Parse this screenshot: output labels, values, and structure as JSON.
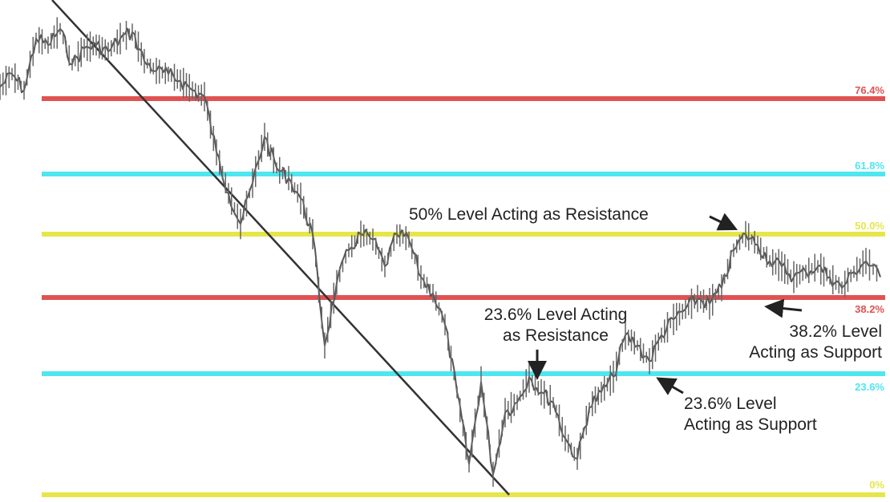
{
  "chart_data": {
    "type": "line",
    "title": "",
    "xlabel": "",
    "ylabel": "",
    "ylim": [
      0,
      100
    ],
    "grid": false,
    "levels": [
      {
        "label": "76.4%",
        "value": 76.4,
        "color": "#e05252"
      },
      {
        "label": "61.8%",
        "value": 61.8,
        "color": "#4ee6f0"
      },
      {
        "label": "50.0%",
        "value": 50.0,
        "color": "#e6e64a"
      },
      {
        "label": "38.2%",
        "value": 38.2,
        "color": "#e05252"
      },
      {
        "label": "23.6%",
        "value": 23.6,
        "color": "#4ee6f0"
      },
      {
        "label": "0%",
        "value": 0,
        "color": "#e6e64a"
      }
    ],
    "price_series": {
      "name": "",
      "color": "#555555",
      "x": [
        0,
        15,
        30,
        45,
        60,
        75,
        90,
        105,
        120,
        135,
        150,
        165,
        180,
        195,
        210,
        225,
        240,
        255,
        270,
        285,
        300,
        315,
        330,
        345,
        360,
        375,
        390,
        405,
        420,
        435,
        450,
        465,
        480,
        495,
        510,
        525,
        540,
        555,
        570,
        585,
        600,
        615,
        630,
        645,
        660,
        675,
        690,
        705,
        720,
        735,
        750,
        765,
        780,
        795,
        810,
        825,
        840,
        855,
        870,
        885,
        900,
        915,
        930,
        945,
        960,
        975,
        990,
        1005,
        1020,
        1035,
        1050,
        1065,
        1080,
        1098
      ],
      "y": [
        80,
        84,
        79,
        95,
        93,
        98,
        87,
        92,
        93,
        91,
        95,
        97,
        88,
        85,
        84,
        82,
        79,
        77,
        66,
        58,
        52,
        60,
        69,
        63,
        61,
        57,
        50,
        29,
        41,
        47,
        50,
        49,
        44,
        50,
        49,
        42,
        39,
        33,
        20,
        6,
        22,
        4,
        16,
        18,
        23,
        20,
        18,
        11,
        7,
        17,
        20,
        23,
        31,
        29,
        26,
        31,
        34,
        36,
        38,
        37,
        40,
        47,
        50,
        48,
        45,
        44,
        42,
        43,
        44,
        42,
        40,
        43,
        45,
        42
      ]
    },
    "trendline": {
      "from": [
        65,
        100
      ],
      "to": [
        635,
        0
      ],
      "color": "#333333"
    },
    "annotations": [
      {
        "text": [
          "50% Level Acting as Resistance"
        ]
      },
      {
        "text": [
          "23.6% Level Acting",
          "as Resistance"
        ]
      },
      {
        "text": [
          "38.2% Level",
          "Acting as Support"
        ]
      },
      {
        "text": [
          "23.6% Level",
          "Acting as Support"
        ]
      }
    ]
  }
}
